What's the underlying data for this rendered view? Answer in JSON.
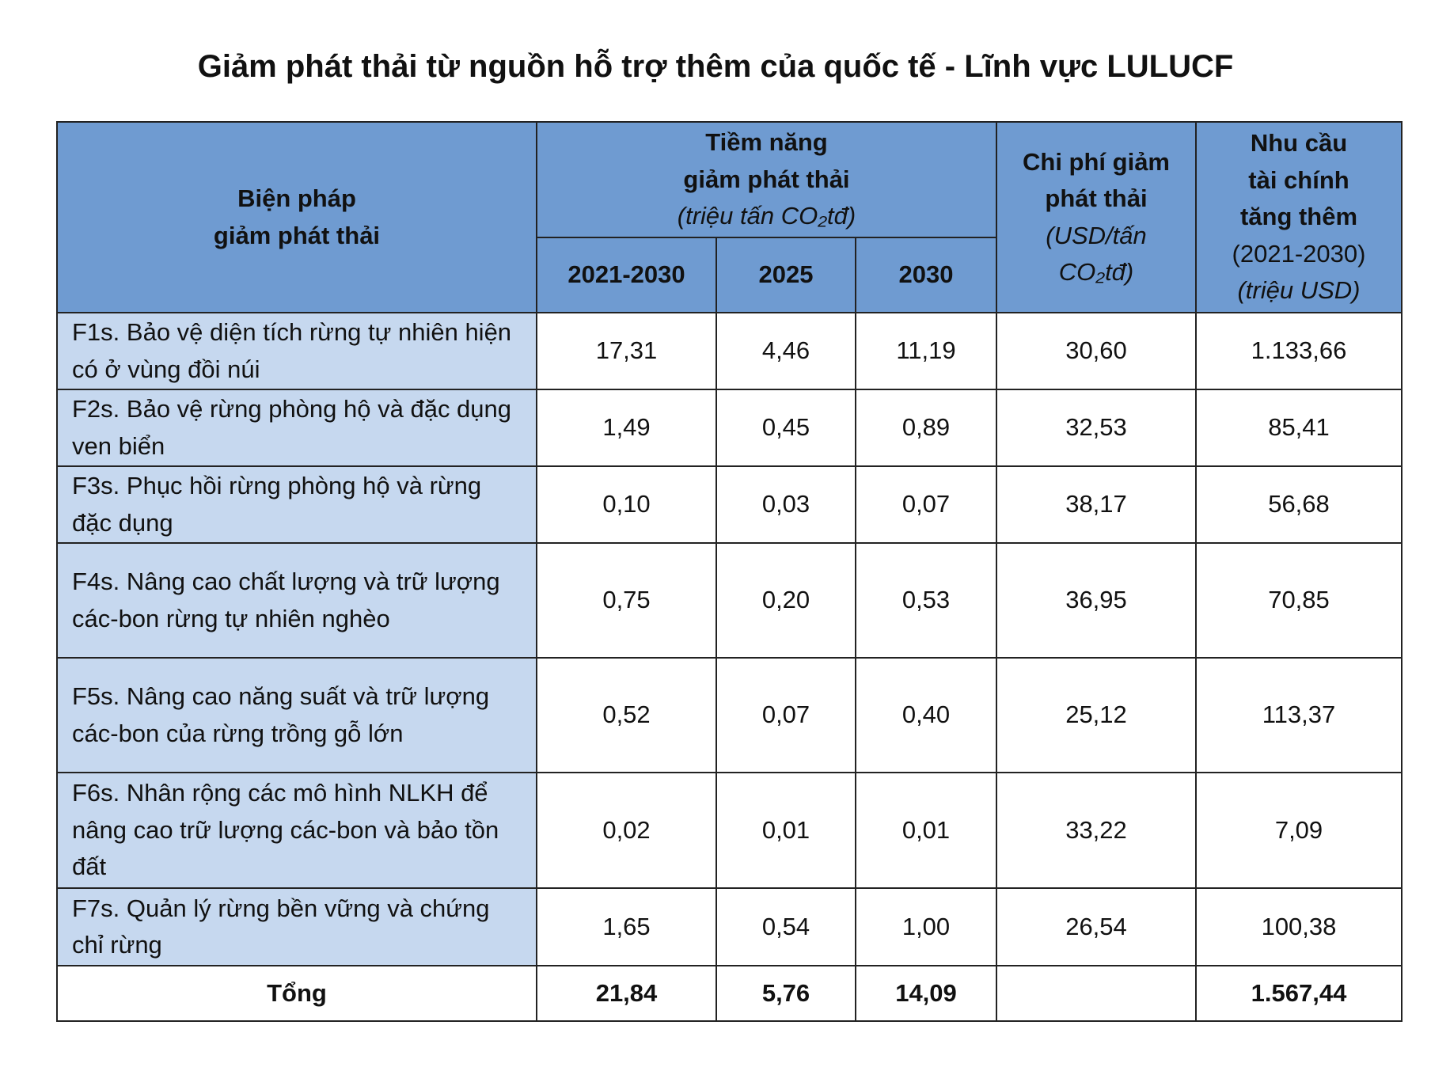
{
  "title": "Giảm phát thải từ nguồn hỗ trợ thêm của quốc tế - Lĩnh vực LULUCF",
  "table": {
    "header": {
      "method": [
        "Biện pháp",
        "giảm phát thải"
      ],
      "potential": [
        "Tiềm năng",
        "giảm phát thải"
      ],
      "potential_unit": "(triệu tấn CO₂tđ)",
      "years": [
        "2021-2030",
        "2025",
        "2030"
      ],
      "cost": [
        "Chi phí giảm",
        "phát thải"
      ],
      "cost_unit": [
        "(USD/tấn",
        "CO₂tđ)"
      ],
      "need": [
        "Nhu cầu",
        "tài chính",
        "tăng thêm"
      ],
      "need_period": "(2021-2030)",
      "need_unit": "(triệu USD)"
    },
    "rows": [
      {
        "label": "F1s. Bảo vệ diện tích rừng tự nhiên hiện có ở vùng đồi núi",
        "values": [
          "17,31",
          "4,46",
          "11,19",
          "30,60",
          "1.133,66"
        ]
      },
      {
        "label": "F2s. Bảo vệ rừng phòng hộ và đặc dụng ven biển",
        "values": [
          "1,49",
          "0,45",
          "0,89",
          "32,53",
          "85,41"
        ]
      },
      {
        "label": "F3s. Phục hồi rừng phòng hộ và rừng đặc dụng",
        "values": [
          "0,10",
          "0,03",
          "0,07",
          "38,17",
          "56,68"
        ]
      },
      {
        "label": "F4s. Nâng cao chất lượng và trữ lượng các-bon rừng tự nhiên nghèo",
        "values": [
          "0,75",
          "0,20",
          "0,53",
          "36,95",
          "70,85"
        ]
      },
      {
        "label": "F5s. Nâng cao năng suất và trữ lượng các-bon của rừng trồng gỗ lớn",
        "values": [
          "0,52",
          "0,07",
          "0,40",
          "25,12",
          "113,37"
        ]
      },
      {
        "label": "F6s. Nhân rộng các mô hình NLKH để nâng cao trữ lượng các-bon và bảo tồn đất",
        "values": [
          "0,02",
          "0,01",
          "0,01",
          "33,22",
          "7,09"
        ]
      },
      {
        "label": "F7s. Quản lý rừng bền vững và chứng chỉ rừng",
        "values": [
          "1,65",
          "0,54",
          "1,00",
          "26,54",
          "100,38"
        ]
      }
    ],
    "total": {
      "label": "Tổng",
      "potential": [
        "21,84",
        "5,76",
        "14,09"
      ],
      "need": "1.567,44"
    }
  }
}
